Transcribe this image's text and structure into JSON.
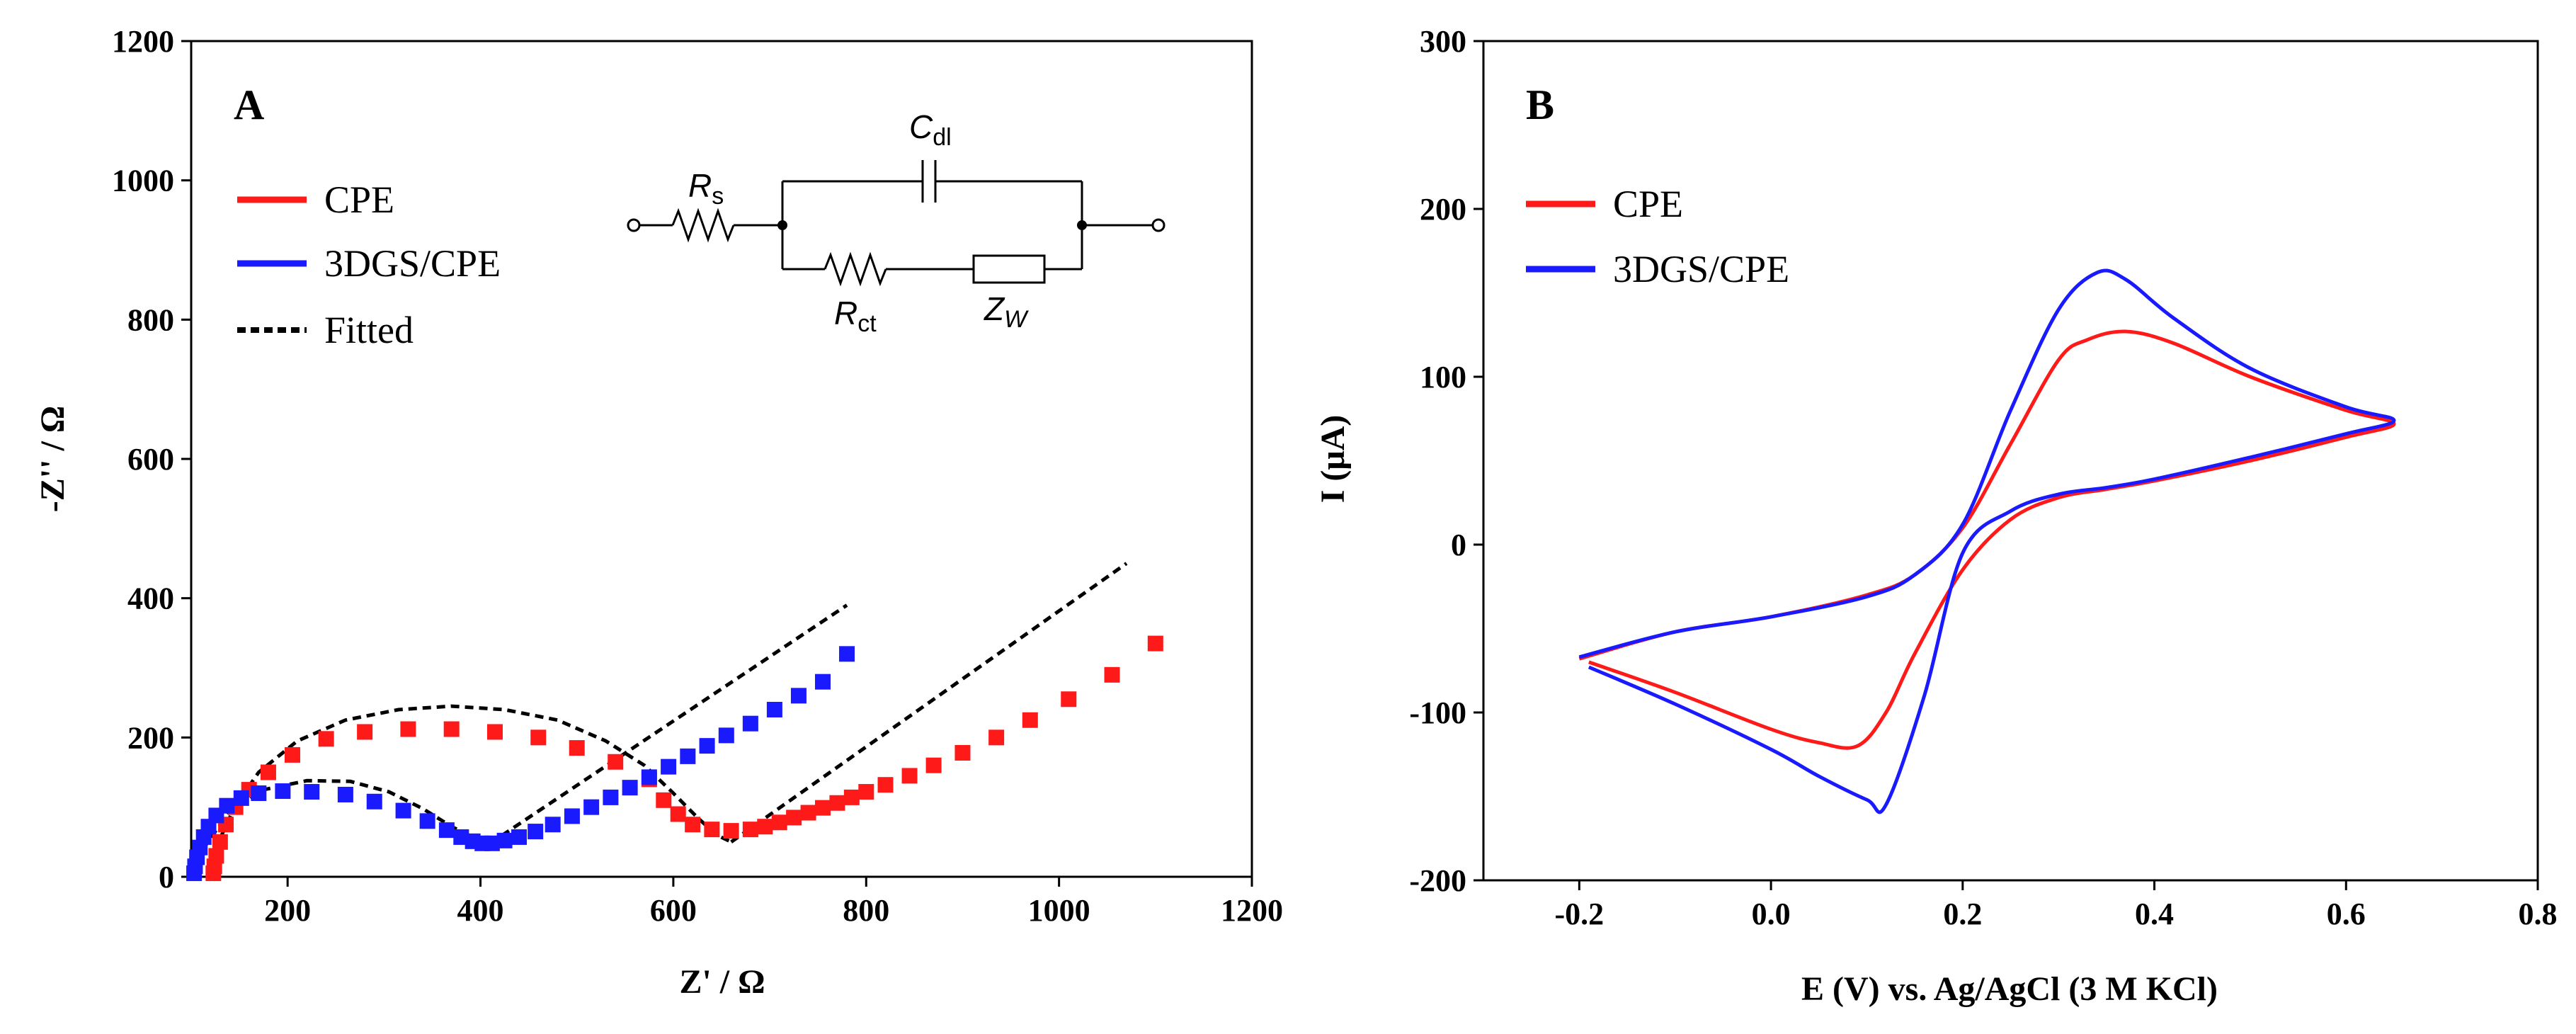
{
  "chart_data": [
    {
      "panel": "A",
      "type": "scatter",
      "xlabel": "Z' / Ω",
      "ylabel": "-Z'' / Ω",
      "xlim": [
        100,
        1200
      ],
      "ylim": [
        0,
        1200
      ],
      "xticks": [
        "200",
        "400",
        "600",
        "800",
        "1000",
        "1200"
      ],
      "yticks": [
        "0",
        "200",
        "400",
        "600",
        "800",
        "1000",
        "1200"
      ],
      "legend_position": "top-left",
      "legend": [
        "CPE",
        "3DGS/CPE",
        "Fitted"
      ],
      "colors": {
        "CPE": "#ff1a1a",
        "3DGS/CPE": "#1a1aff",
        "Fitted": "#000000"
      },
      "circuit": {
        "Rs": "R",
        "Rs_sub": "s",
        "Cdl": "C",
        "Cdl_sub": "dl",
        "Rct": "R",
        "Rct_sub": "ct",
        "Zw": "Z",
        "Zw_sub": "W"
      },
      "series": [
        {
          "name": "CPE",
          "marker": "square",
          "x": [
            123,
            124,
            126,
            130,
            136,
            146,
            160,
            180,
            205,
            240,
            280,
            325,
            370,
            415,
            460,
            500,
            540,
            575,
            590,
            605,
            620,
            640,
            660,
            680,
            695,
            710,
            725,
            740,
            755,
            770,
            785,
            800,
            820,
            845,
            870,
            900,
            935,
            970,
            1010,
            1055,
            1100
          ],
          "y": [
            5,
            15,
            30,
            50,
            75,
            100,
            125,
            150,
            175,
            198,
            208,
            212,
            212,
            208,
            200,
            185,
            165,
            140,
            110,
            90,
            75,
            68,
            66,
            68,
            72,
            78,
            85,
            92,
            99,
            106,
            114,
            122,
            132,
            145,
            160,
            178,
            200,
            225,
            255,
            290,
            335
          ]
        },
        {
          "name": "3DGS/CPE",
          "marker": "square",
          "x": [
            103,
            104,
            106,
            109,
            113,
            118,
            126,
            137,
            152,
            170,
            195,
            225,
            260,
            290,
            320,
            345,
            365,
            380,
            392,
            402,
            412,
            425,
            440,
            457,
            475,
            495,
            515,
            535,
            555,
            575,
            595,
            615,
            635,
            655,
            680,
            705,
            730,
            755,
            780
          ],
          "y": [
            5,
            15,
            28,
            42,
            57,
            72,
            88,
            102,
            113,
            120,
            123,
            122,
            118,
            108,
            95,
            80,
            67,
            57,
            51,
            48,
            48,
            52,
            57,
            65,
            75,
            87,
            100,
            114,
            128,
            143,
            158,
            173,
            188,
            203,
            220,
            240,
            260,
            280,
            320
          ]
        },
        {
          "name": "Fitted",
          "style": "dashed",
          "segments": [
            {
              "x": [
                118,
                125,
                145,
                170,
                210,
                260,
                315,
                370,
                425,
                480,
                530,
                570,
                600,
                625,
                645,
                660
              ],
              "y": [
                0,
                40,
                100,
                150,
                195,
                225,
                240,
                245,
                240,
                225,
                195,
                160,
                120,
                85,
                60,
                50
              ]
            },
            {
              "x": [
                660,
                1070
              ],
              "y": [
                50,
                450
              ]
            },
            {
              "x": [
                105,
                115,
                140,
                175,
                220,
                265,
                305,
                340,
                370,
                395,
                410
              ],
              "y": [
                0,
                45,
                95,
                125,
                138,
                137,
                122,
                98,
                72,
                55,
                48
              ]
            },
            {
              "x": [
                410,
                780
              ],
              "y": [
                48,
                390
              ]
            }
          ]
        }
      ]
    },
    {
      "panel": "B",
      "type": "line",
      "xlabel": "E (V) vs. Ag/AgCl (3 M KCl)",
      "ylabel": "I (μA)",
      "xlim": [
        -0.3,
        0.8
      ],
      "ylim": [
        -200,
        300
      ],
      "xticks": [
        "-0.2",
        "0.0",
        "0.2",
        "0.4",
        "0.6",
        "0.8"
      ],
      "yticks": [
        "-200",
        "-100",
        "0",
        "100",
        "200",
        "300"
      ],
      "legend_position": "top-left",
      "legend": [
        "CPE",
        "3DGS/CPE"
      ],
      "colors": {
        "CPE": "#ff1a1a",
        "3DGS/CPE": "#1a1aff"
      },
      "series": [
        {
          "name": "CPE",
          "x": [
            -0.2,
            -0.1,
            0.0,
            0.1,
            0.15,
            0.2,
            0.25,
            0.3,
            0.33,
            0.37,
            0.42,
            0.5,
            0.6,
            0.65,
            0.6,
            0.5,
            0.4,
            0.35,
            0.3,
            0.25,
            0.2,
            0.15,
            0.12,
            0.09,
            0.05,
            0.0,
            -0.1,
            -0.19
          ],
          "y": [
            -68,
            -52,
            -43,
            -30,
            -18,
            10,
            60,
            110,
            122,
            127,
            120,
            100,
            80,
            72,
            64,
            50,
            38,
            33,
            28,
            15,
            -15,
            -65,
            -100,
            -120,
            -118,
            -110,
            -88,
            -70
          ]
        },
        {
          "name": "3DGS/CPE",
          "x": [
            -0.2,
            -0.1,
            0.0,
            0.1,
            0.15,
            0.2,
            0.25,
            0.3,
            0.34,
            0.37,
            0.42,
            0.5,
            0.6,
            0.65,
            0.6,
            0.5,
            0.4,
            0.35,
            0.3,
            0.25,
            0.2,
            0.16,
            0.12,
            0.1,
            0.05,
            0.0,
            -0.1,
            -0.19
          ],
          "y": [
            -67,
            -52,
            -43,
            -31,
            -18,
            12,
            80,
            140,
            162,
            158,
            135,
            105,
            82,
            74,
            66,
            52,
            39,
            34,
            30,
            20,
            -5,
            -90,
            -155,
            -152,
            -138,
            -122,
            -95,
            -73
          ]
        }
      ]
    }
  ],
  "panels": {
    "A": {
      "label": "A"
    },
    "B": {
      "label": "B"
    }
  }
}
